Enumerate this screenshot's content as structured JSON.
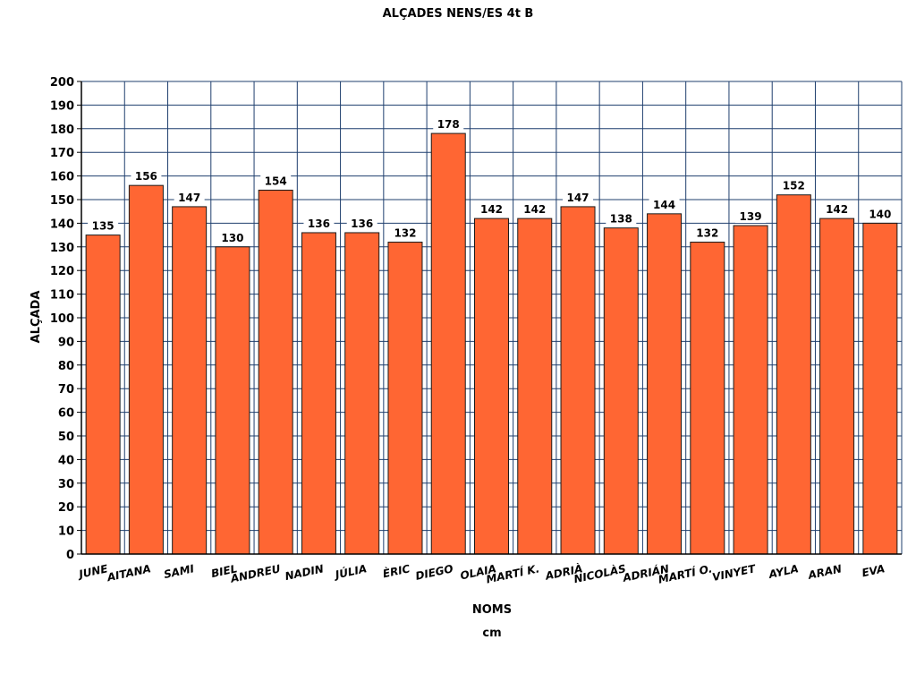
{
  "chart_data": {
    "type": "bar",
    "title": "ALÇADES NENS/ES 4t B",
    "xlabel": "NOMS",
    "ylabel": "ALÇADA",
    "unit_label": "cm",
    "categories": [
      "JUNE",
      "AITANA",
      "SAMI",
      "BIEL",
      "ANDREU",
      "NADIN",
      "JÚLIA",
      "ÈRIC",
      "DIEGO",
      "OLAIA",
      "MARTÍ K.",
      "ADRIÀ",
      "NICOLÀS",
      "ADRIÁN",
      "MARTÍ O.",
      "VINYET",
      "AYLA",
      "ARAN",
      "EVA"
    ],
    "values": [
      135,
      156,
      147,
      130,
      154,
      136,
      136,
      132,
      178,
      142,
      142,
      147,
      138,
      144,
      132,
      139,
      152,
      142,
      140
    ],
    "ylim": [
      0,
      200
    ],
    "ytick_step": 10,
    "grid": true,
    "legend": "none",
    "colors": {
      "bar": "#ff6633",
      "bar_edge": "#1a1a1a",
      "grid": "#1f3f6e"
    }
  }
}
